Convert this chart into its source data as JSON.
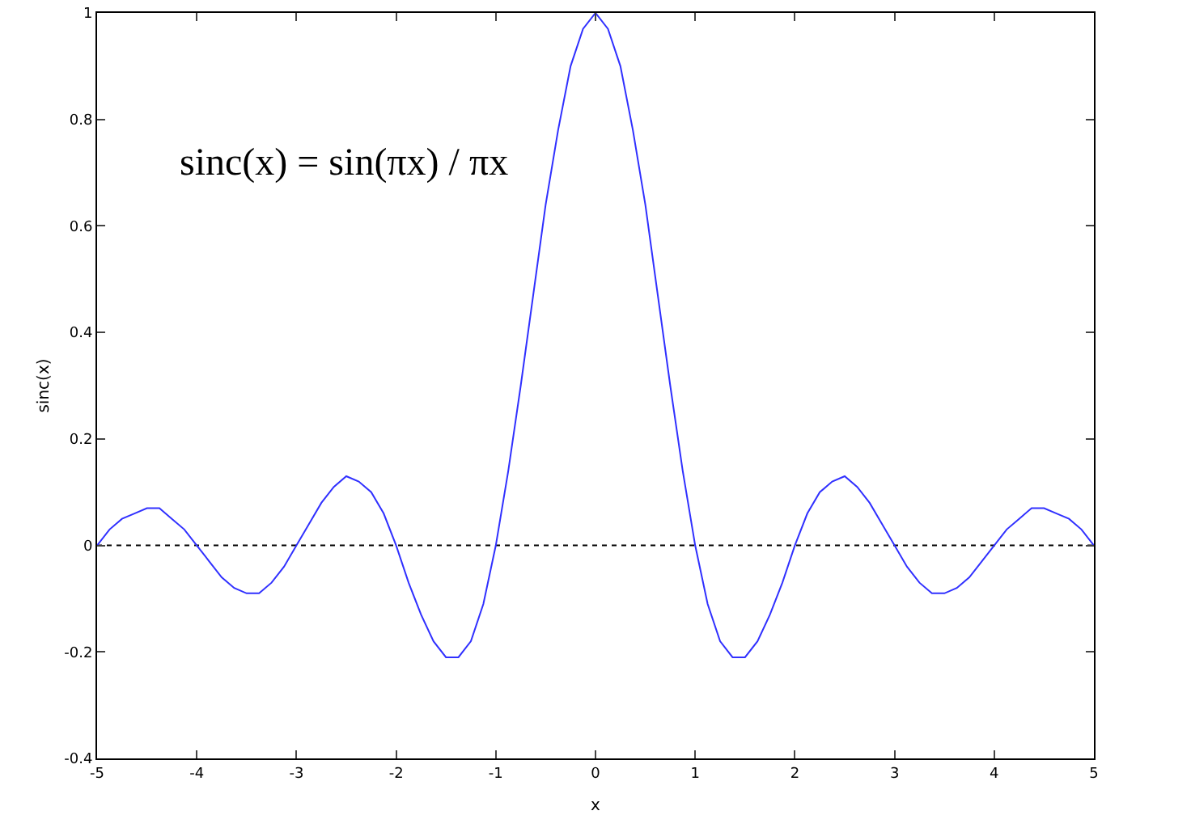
{
  "chart_data": {
    "type": "line",
    "xlabel": "x",
    "ylabel": "sinc(x)",
    "annotations": [
      "sinc(x) = sin(πx) / πx"
    ],
    "x": [
      -5,
      -4.875,
      -4.75,
      -4.625,
      -4.5,
      -4.375,
      -4.25,
      -4.125,
      -4,
      -3.875,
      -3.75,
      -3.625,
      -3.5,
      -3.375,
      -3.25,
      -3.125,
      -3,
      -2.875,
      -2.75,
      -2.625,
      -2.5,
      -2.375,
      -2.25,
      -2.125,
      -2,
      -1.875,
      -1.75,
      -1.625,
      -1.5,
      -1.375,
      -1.25,
      -1.125,
      -1,
      -0.875,
      -0.75,
      -0.625,
      -0.5,
      -0.375,
      -0.25,
      -0.125,
      0,
      0.125,
      0.25,
      0.375,
      0.5,
      0.625,
      0.75,
      0.875,
      1,
      1.125,
      1.25,
      1.375,
      1.5,
      1.625,
      1.75,
      1.875,
      2,
      2.125,
      2.25,
      2.375,
      2.5,
      2.625,
      2.75,
      2.875,
      3,
      3.125,
      3.25,
      3.375,
      3.5,
      3.625,
      3.75,
      3.875,
      4,
      4.125,
      4.25,
      4.375,
      4.5,
      4.625,
      4.75,
      4.875,
      5
    ],
    "series": [
      {
        "color": "#3030ff",
        "values": [
          0,
          0.03,
          0.05,
          0.06,
          0.07,
          0.07,
          0.05,
          0.03,
          0,
          -0.03,
          -0.06,
          -0.08,
          -0.09,
          -0.09,
          -0.07,
          -0.04,
          0,
          0.04,
          0.08,
          0.11,
          0.13,
          0.12,
          0.1,
          0.06,
          0,
          -0.07,
          -0.13,
          -0.18,
          -0.21,
          -0.21,
          -0.18,
          -0.11,
          0,
          0.14,
          0.3,
          0.47,
          0.64,
          0.78,
          0.9,
          0.97,
          1,
          0.97,
          0.9,
          0.78,
          0.64,
          0.47,
          0.3,
          0.14,
          0,
          -0.11,
          -0.18,
          -0.21,
          -0.21,
          -0.18,
          -0.13,
          -0.07,
          0,
          0.06,
          0.1,
          0.12,
          0.13,
          0.11,
          0.08,
          0.04,
          0,
          -0.04,
          -0.07,
          -0.09,
          -0.09,
          -0.08,
          -0.06,
          -0.03,
          0,
          0.03,
          0.05,
          0.07,
          0.07,
          0.06,
          0.05,
          0.03,
          0
        ]
      }
    ],
    "xlim": [
      -5,
      5
    ],
    "xticks": [
      -5,
      -4,
      -3,
      -2,
      -1,
      0,
      1,
      2,
      3,
      4,
      5
    ],
    "ylim": [
      -0.4,
      1
    ],
    "yticks": [
      -0.4,
      -0.2,
      0,
      0.2,
      0.4,
      0.6,
      0.8,
      1
    ],
    "ref_lines": [
      {
        "axis": "y",
        "value": 0,
        "color": "#000000",
        "line_style": "dotted"
      }
    ],
    "grid": false,
    "marker": "none",
    "line_style": "solid"
  }
}
